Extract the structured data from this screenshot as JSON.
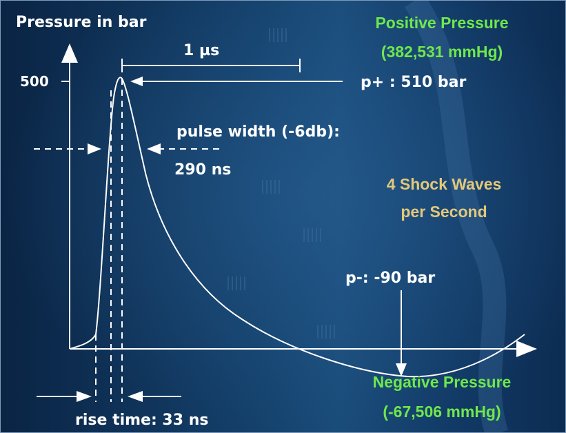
{
  "y_axis_label": "Pressure in bar",
  "y_tick_500": "500",
  "time_scale": "1 µs",
  "peak_label": "p+ :  510 bar",
  "pulse_width_label": "pulse width (-6db):",
  "pulse_width_value": "290 ns",
  "negative_peak_label": "p-:  -90 bar",
  "rise_time_label": "rise time: 33 ns",
  "positive_title": "Positive Pressure",
  "positive_mmhg": "(382,531 mmHg)",
  "negative_title": "Negative Pressure",
  "negative_mmhg": "(-67,506 mmHg)",
  "shock_line1": "4 Shock Waves",
  "shock_line2": "per Second",
  "colors": {
    "background": "#0b2a4d",
    "green_text": "#6ee84c",
    "gold_text": "#e3c87a",
    "lines": "#ffffff"
  }
}
